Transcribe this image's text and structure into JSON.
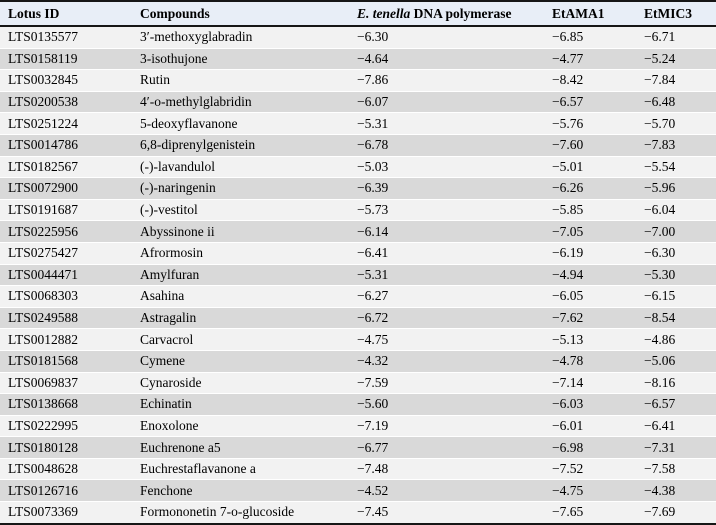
{
  "colors": {
    "header_bg": "#e8eef7",
    "row_odd_bg": "#f2f2f2",
    "row_even_bg": "#d9d9d9",
    "rule": "#161616",
    "text": "#000000"
  },
  "table": {
    "header": {
      "lotus_id": "Lotus ID",
      "compounds": "Compounds",
      "dna_polymerase_italic": "E. tenella",
      "dna_polymerase_rest": " DNA polymerase",
      "etama1": "EtAMA1",
      "etmic3": "EtMIC3"
    },
    "rows": [
      [
        "LTS0135577",
        "3′-methoxyglabradin",
        "−6.30",
        "−6.85",
        "−6.71"
      ],
      [
        "LTS0158119",
        "3-isothujone",
        "−4.64",
        "−4.77",
        "−5.24"
      ],
      [
        "LTS0032845",
        "Rutin",
        "−7.86",
        "−8.42",
        "−7.84"
      ],
      [
        "LTS0200538",
        "4′-o-methylglabridin",
        "−6.07",
        "−6.57",
        "−6.48"
      ],
      [
        "LTS0251224",
        "5-deoxyflavanone",
        "−5.31",
        "−5.76",
        "−5.70"
      ],
      [
        "LTS0014786",
        "6,8-diprenylgenistein",
        "−6.78",
        "−7.60",
        "−7.83"
      ],
      [
        "LTS0182567",
        "(-)-lavandulol",
        "−5.03",
        "−5.01",
        "−5.54"
      ],
      [
        "LTS0072900",
        "(-)-naringenin",
        "−6.39",
        "−6.26",
        "−5.96"
      ],
      [
        "LTS0191687",
        "(-)-vestitol",
        "−5.73",
        "−5.85",
        "−6.04"
      ],
      [
        "LTS0225956",
        "Abyssinone ii",
        "−6.14",
        "−7.05",
        "−7.00"
      ],
      [
        "LTS0275427",
        "Afrormosin",
        "−6.41",
        "−6.19",
        "−6.30"
      ],
      [
        "LTS0044471",
        "Amylfuran",
        "−5.31",
        "−4.94",
        "−5.30"
      ],
      [
        "LTS0068303",
        "Asahina",
        "−6.27",
        "−6.05",
        "−6.15"
      ],
      [
        "LTS0249588",
        "Astragalin",
        "−6.72",
        "−7.62",
        "−8.54"
      ],
      [
        "LTS0012882",
        "Carvacrol",
        "−4.75",
        "−5.13",
        "−4.86"
      ],
      [
        "LTS0181568",
        "Cymene",
        "−4.32",
        "−4.78",
        "−5.06"
      ],
      [
        "LTS0069837",
        "Cynaroside",
        "−7.59",
        "−7.14",
        "−8.16"
      ],
      [
        "LTS0138668",
        "Echinatin",
        "−5.60",
        "−6.03",
        "−6.57"
      ],
      [
        "LTS0222995",
        "Enoxolone",
        "−7.19",
        "−6.01",
        "−6.41"
      ],
      [
        "LTS0180128",
        "Euchrenone a5",
        "−6.77",
        "−6.98",
        "−7.31"
      ],
      [
        "LTS0048628",
        "Euchrestaflavanone a",
        "−7.48",
        "−7.52",
        "−7.58"
      ],
      [
        "LTS0126716",
        "Fenchone",
        "−4.52",
        "−4.75",
        "−4.38"
      ],
      [
        "LTS0073369",
        "Formononetin 7-o-glucoside",
        "−7.45",
        "−7.65",
        "−7.69"
      ]
    ],
    "cell_names": [
      "cell-lotus-id",
      "cell-compound",
      "cell-dna-polymerase-score",
      "cell-etama1-score",
      "cell-etmic3-score"
    ]
  }
}
